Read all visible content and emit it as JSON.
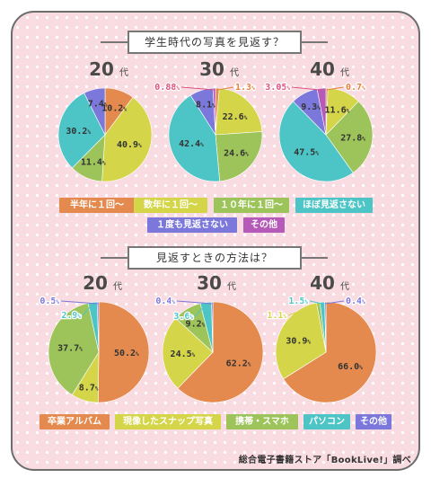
{
  "colors": {
    "orange": "#e58a4e",
    "yellow": "#d4d548",
    "green": "#9cc45a",
    "teal": "#4dc5c6",
    "purple": "#7b77db",
    "magenta": "#b55ab8",
    "label_pink": "#e0507e",
    "label_orange": "#e27f3a",
    "background": "#f9dbe2"
  },
  "section1": {
    "title": "学生時代の写真を見返す？",
    "legend": [
      "半年に１回〜",
      "数年に１回〜",
      "１０年に１回〜",
      "ほぼ見返さない",
      "１度も見返さない",
      "その他"
    ]
  },
  "section2": {
    "title": "見返すときの方法は？",
    "legend": [
      "卒業アルバム",
      "現像したスナップ写真",
      "携帯・スマホ",
      "パソコン",
      "その他"
    ]
  },
  "credit": "総合電子書籍ストア「BookLive!」調べ",
  "chart_data": [
    {
      "type": "pie",
      "title": "20代",
      "group": "学生時代の写真を見返す？",
      "labels": [
        "半年に１回〜",
        "数年に１回〜",
        "１０年に１回〜",
        "ほぼ見返さない",
        "１度も見返さない",
        "その他"
      ],
      "values": [
        10.2,
        40.9,
        11.4,
        30.2,
        7.4,
        0
      ],
      "value_labels": [
        "10.2",
        "40.9",
        "11.4",
        "30.2",
        "7.4",
        ""
      ]
    },
    {
      "type": "pie",
      "title": "30代",
      "group": "学生時代の写真を見返す？",
      "labels": [
        "半年に１回〜",
        "数年に１回〜",
        "１０年に１回〜",
        "ほぼ見返さない",
        "１度も見返さない",
        "その他"
      ],
      "values": [
        1.3,
        22.6,
        24.6,
        42.4,
        8.1,
        0.88
      ],
      "value_labels": [
        "1.3",
        "22.6",
        "24.6",
        "42.4",
        "8.1",
        "0.88"
      ]
    },
    {
      "type": "pie",
      "title": "40代",
      "group": "学生時代の写真を見返す？",
      "labels": [
        "半年に１回〜",
        "数年に１回〜",
        "１０年に１回〜",
        "ほぼ見返さない",
        "１度も見返さない",
        "その他"
      ],
      "values": [
        0.7,
        11.6,
        27.8,
        47.5,
        9.3,
        3.05
      ],
      "value_labels": [
        "0.7",
        "11.6",
        "27.8",
        "47.5",
        "9.3",
        "3.05"
      ]
    },
    {
      "type": "pie",
      "title": "20代",
      "group": "見返すときの方法は？",
      "labels": [
        "卒業アルバム",
        "現像したスナップ写真",
        "携帯・スマホ",
        "パソコン",
        "その他"
      ],
      "values": [
        50.2,
        8.7,
        37.7,
        2.9,
        0.5
      ],
      "value_labels": [
        "50.2",
        "8.7",
        "37.7",
        "2.9",
        "0.5"
      ]
    },
    {
      "type": "pie",
      "title": "30代",
      "group": "見返すときの方法は？",
      "labels": [
        "卒業アルバム",
        "現像したスナップ写真",
        "携帯・スマホ",
        "パソコン",
        "その他"
      ],
      "values": [
        62.2,
        24.5,
        9.2,
        3.6,
        0.4
      ],
      "value_labels": [
        "62.2",
        "24.5",
        "9.2",
        "3.6",
        "0.4"
      ]
    },
    {
      "type": "pie",
      "title": "40代",
      "group": "見返すときの方法は？",
      "labels": [
        "卒業アルバム",
        "現像したスナップ写真",
        "携帯・スマホ",
        "パソコン",
        "その他"
      ],
      "values": [
        66.0,
        30.9,
        1.1,
        1.5,
        0.4
      ],
      "value_labels": [
        "66.0",
        "30.9",
        "1.1",
        "1.5",
        "0.4"
      ]
    }
  ]
}
